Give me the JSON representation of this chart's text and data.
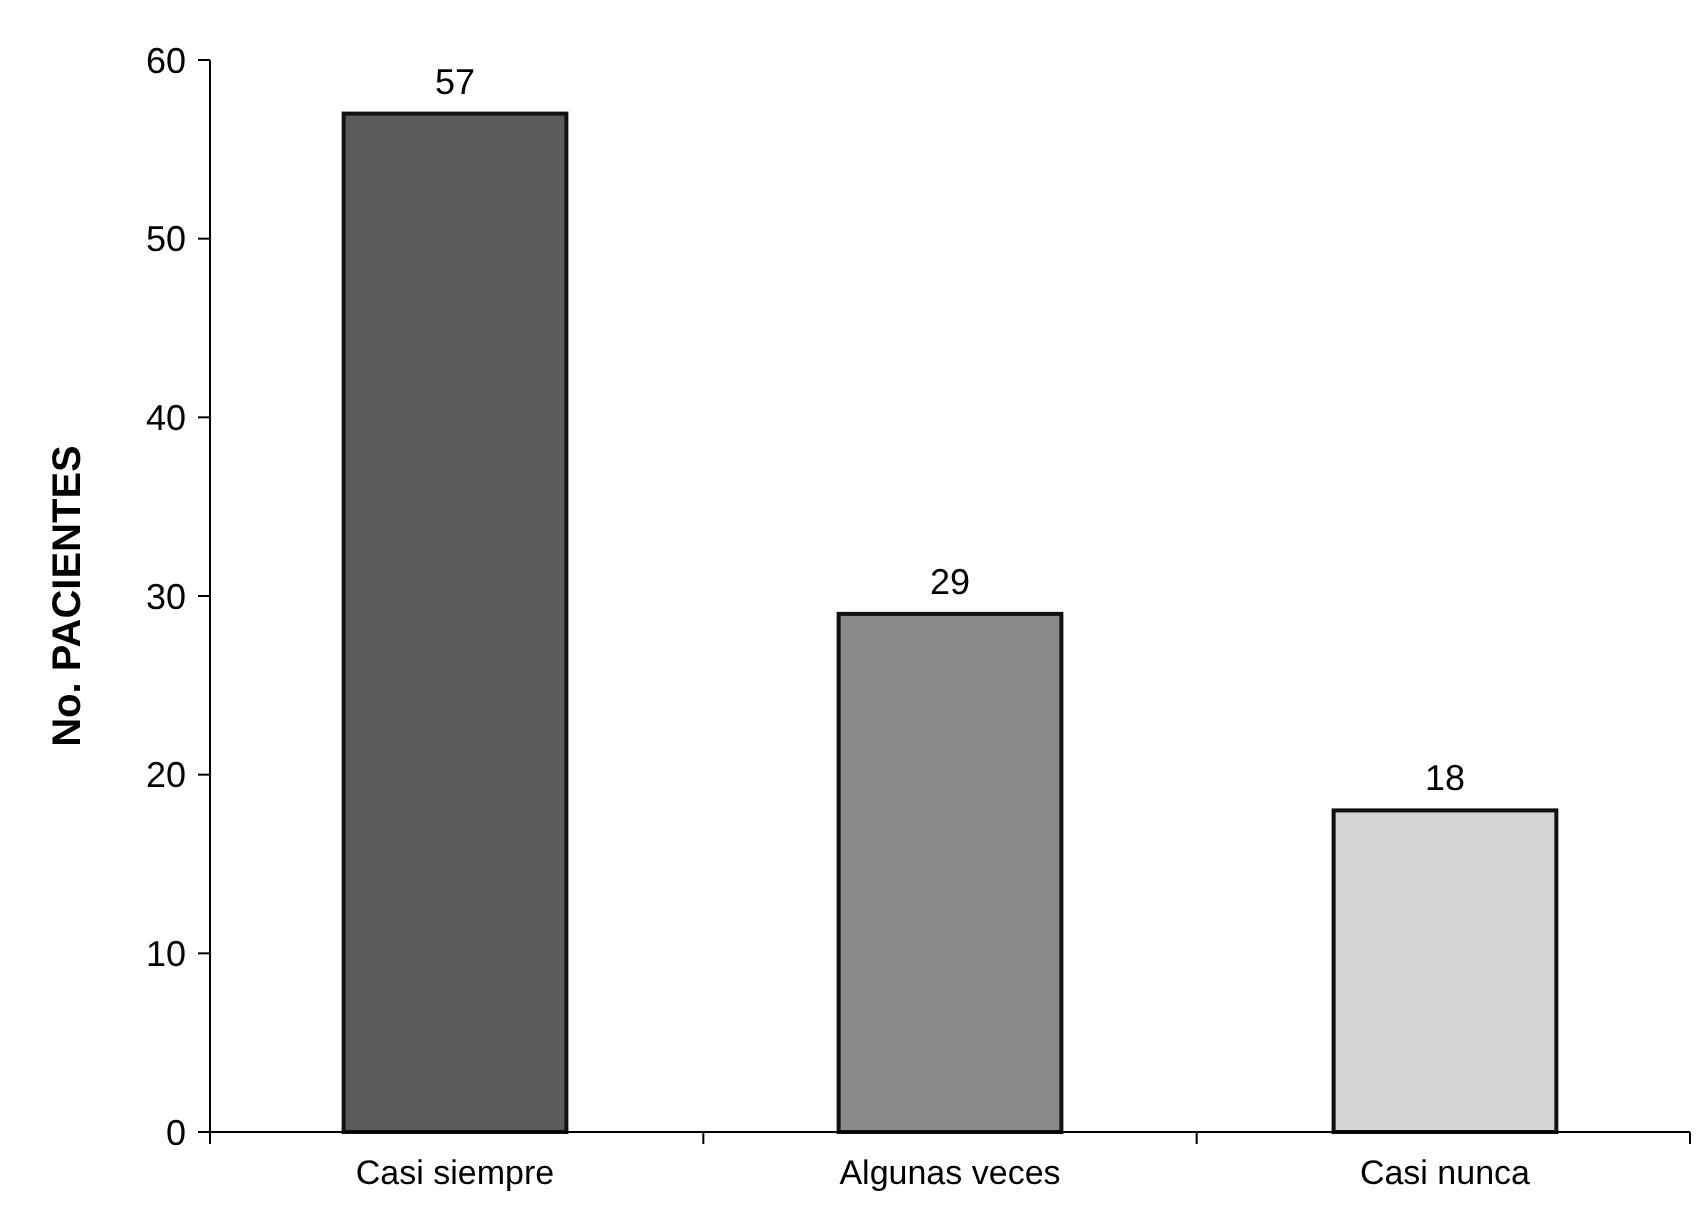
{
  "chart_data": {
    "type": "bar",
    "ylabel": "No. PACIENTES",
    "categories": [
      "Casi siempre",
      "Algunas veces",
      "Casi nunca"
    ],
    "values": [
      57,
      29,
      18
    ],
    "colors": [
      "#5a5a5a",
      "#8a8a8a",
      "#d4d4d4"
    ],
    "ylim": [
      0,
      60
    ],
    "yticks": [
      0,
      10,
      20,
      30,
      40,
      50,
      60
    ],
    "data_labels": true
  }
}
